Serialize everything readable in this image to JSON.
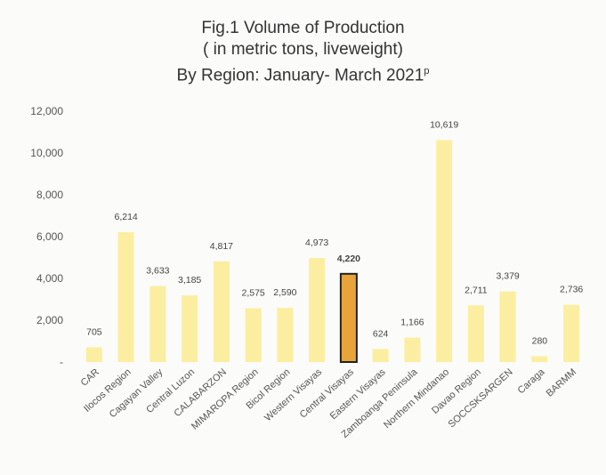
{
  "chart_data": {
    "type": "bar",
    "title_lines": [
      "Fig.1 Volume of Production",
      "( in  metric tons, liveweight)",
      "By Region: January- March 2021"
    ],
    "title_superscript": "p",
    "categories": [
      "CAR",
      "Ilocos Region",
      "Cagayan Valley",
      "Central Luzon",
      "CALABARZON",
      "MIMAROPA Region",
      "Bicol Region",
      "Western Visayas",
      "Central Visayas",
      "Eastern Visayas",
      "Zamboanga Peninsula",
      "Northern Mindanao",
      "Davao Region",
      "SOCCSKSARGEN",
      "Caraga",
      "BARMM"
    ],
    "values": [
      705,
      6214,
      3633,
      3185,
      4817,
      2575,
      2590,
      4973,
      4220,
      624,
      1166,
      10619,
      2711,
      3379,
      280,
      2736
    ],
    "value_labels": [
      "705",
      "6,214",
      "3,633",
      "3,185",
      "4,817",
      "2,575",
      "2,590",
      "4,973",
      "4,220",
      "624",
      "1,166",
      "10,619",
      "2,711",
      "3,379",
      "280",
      "2,736"
    ],
    "ylim": [
      0,
      12000
    ],
    "yticks": [
      0,
      2000,
      4000,
      6000,
      8000,
      10000,
      12000
    ],
    "ytick_labels": [
      "-",
      "2,000",
      "4,000",
      "6,000",
      "8,000",
      "10,000",
      "12,000"
    ],
    "highlight_index": 8,
    "grid": false,
    "legend": "none",
    "colors": {
      "bar": "#fbeea0",
      "highlight": "#e8a33a",
      "highlight_border": "#222222"
    }
  }
}
